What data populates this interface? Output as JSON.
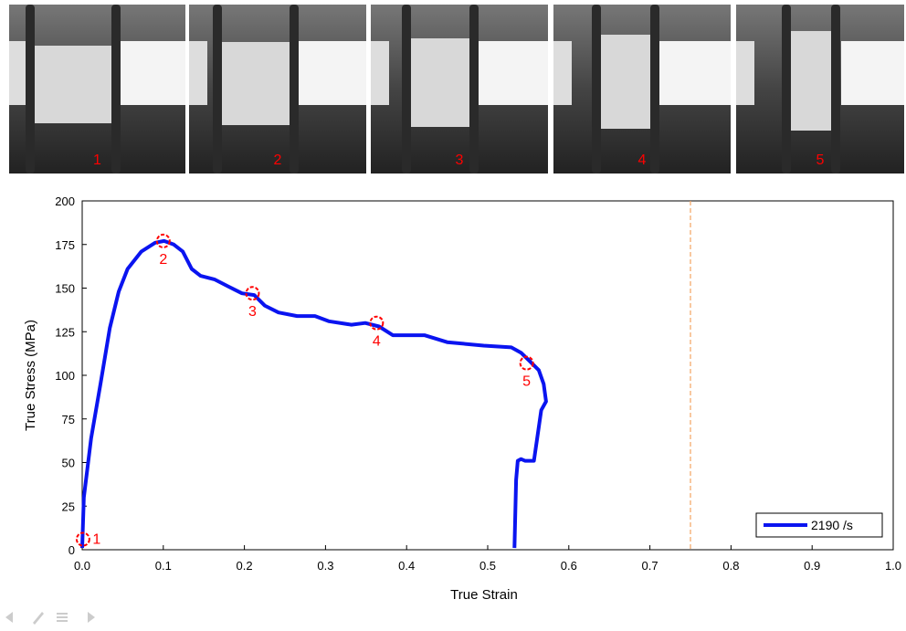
{
  "frames": {
    "labels": [
      "1",
      "2",
      "3",
      "4",
      "5"
    ]
  },
  "chart_data": {
    "type": "line",
    "xlabel": "True Strain",
    "ylabel": "True Stress (MPa)",
    "x": [
      0,
      0.002,
      0.011,
      0.0225,
      0.034,
      0.045,
      0.056,
      0.073,
      0.09,
      0.101,
      0.113,
      0.124,
      0.135,
      0.146,
      0.163,
      0.18,
      0.197,
      0.212,
      0.225,
      0.242,
      0.265,
      0.287,
      0.304,
      0.332,
      0.349,
      0.366,
      0.383,
      0.422,
      0.45,
      0.495,
      0.529,
      0.541,
      0.552,
      0.563,
      0.569,
      0.572,
      0.566,
      0.561,
      0.557,
      0.546,
      0.541,
      0.537,
      0.535,
      0.533
    ],
    "series": [
      {
        "name": "2190 /s",
        "color": "#0a14f0",
        "values": [
          1,
          30,
          64,
          95,
          127,
          148,
          161,
          171,
          176,
          177,
          175,
          171,
          161,
          157,
          155,
          151,
          147,
          146,
          140,
          136,
          134,
          134,
          131,
          129,
          130,
          128,
          123,
          123,
          119,
          117,
          116,
          113,
          108,
          103,
          95,
          85,
          80,
          64,
          51,
          51,
          52,
          51,
          40,
          1
        ]
      }
    ],
    "markers": {
      "x": [
        0.001,
        0.1,
        0.21,
        0.363,
        0.548
      ],
      "y": [
        6,
        177,
        147,
        130,
        107
      ],
      "labels": [
        "1",
        "2",
        "3",
        "4",
        "5"
      ],
      "color": "#ff0000"
    },
    "reference_line": {
      "x": 0.75,
      "color": "#f4a460"
    },
    "xlim": [
      0,
      1
    ],
    "ylim": [
      0,
      200
    ],
    "xticks": [
      {
        "value": 0,
        "label": "0.0"
      },
      0.1,
      0.2,
      0.3,
      0.4,
      0.5,
      0.6,
      0.7,
      0.8,
      0.9,
      {
        "value": 1,
        "label": "1.0"
      }
    ],
    "yticks": [
      0,
      25,
      50,
      75,
      100,
      125,
      150,
      175,
      200
    ],
    "legend": "lower right"
  }
}
